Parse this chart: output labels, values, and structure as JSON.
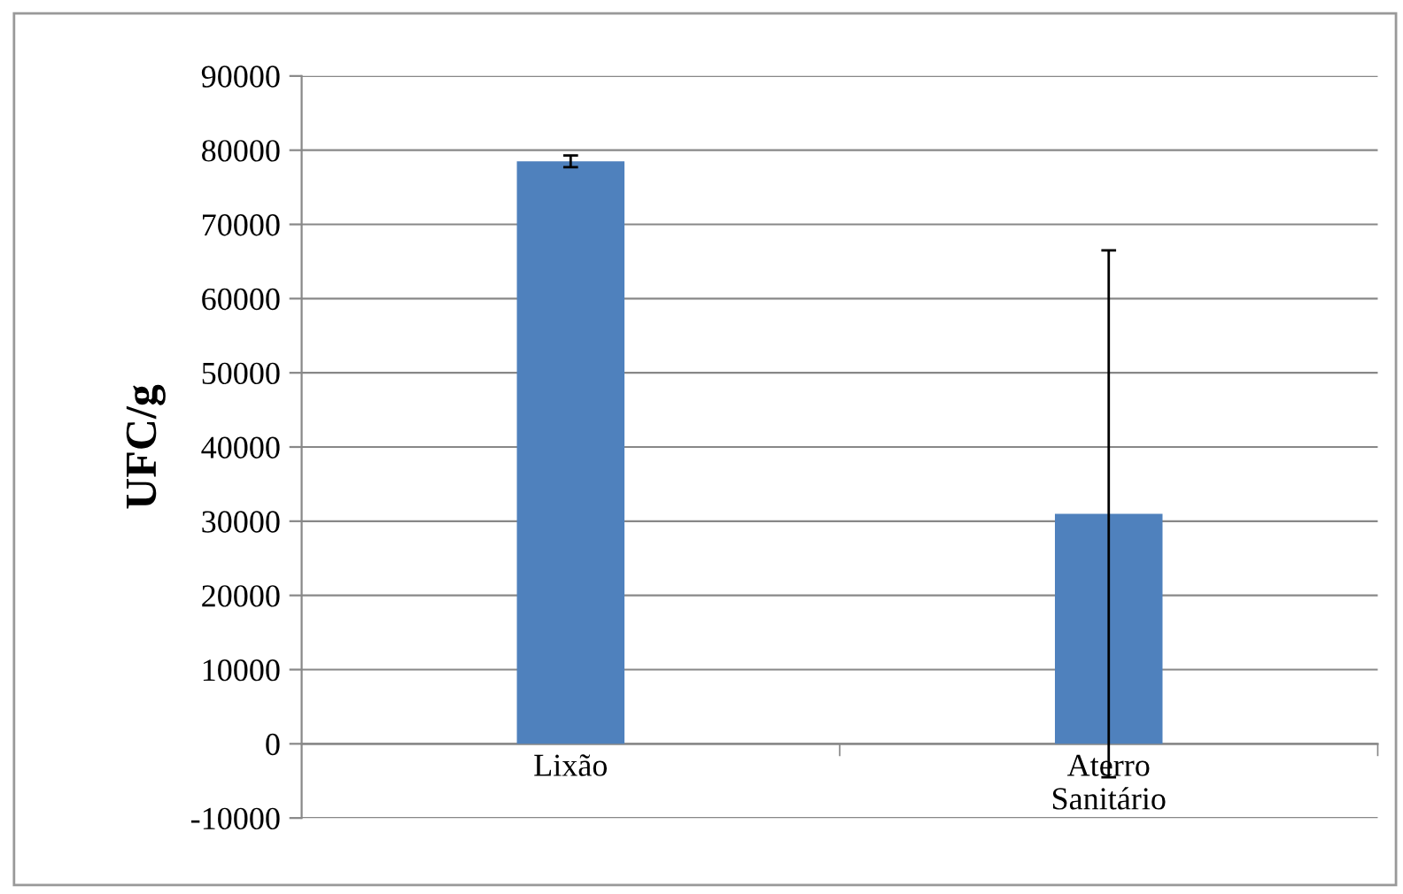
{
  "chart_data": {
    "type": "bar",
    "ylabel": "UFC/g",
    "categories": [
      "Lixão",
      "Aterro\nSanitário"
    ],
    "values": [
      78500,
      31000
    ],
    "errors": [
      800,
      35500
    ],
    "color": "#4f81bd",
    "ylim": [
      -10000,
      90000
    ],
    "yticks": [
      -10000,
      0,
      10000,
      20000,
      30000,
      40000,
      50000,
      60000,
      70000,
      80000,
      90000
    ],
    "grid": "y"
  }
}
